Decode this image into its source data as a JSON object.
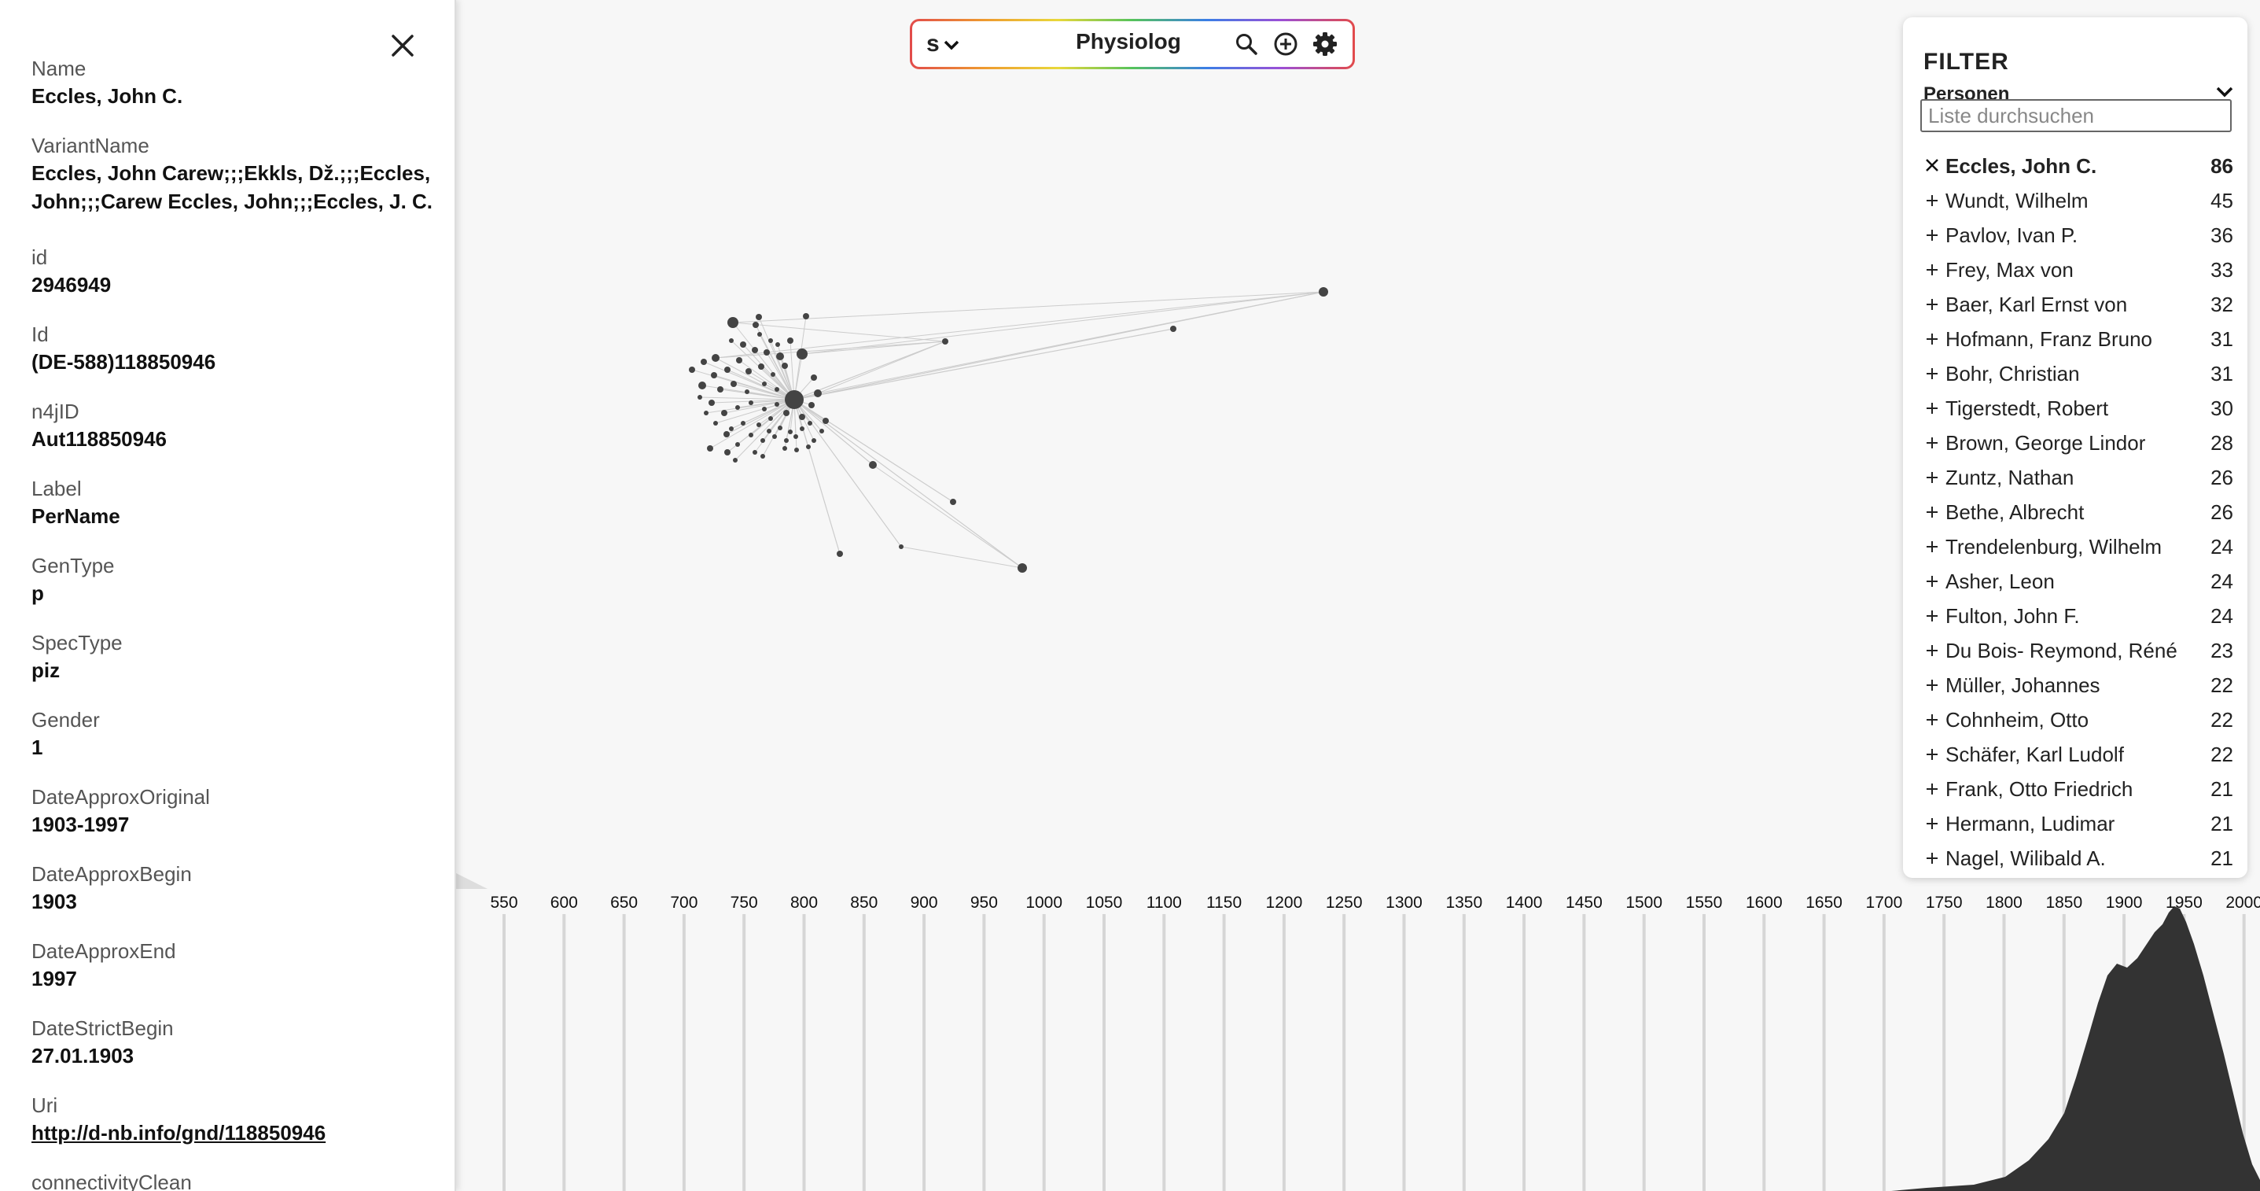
{
  "detail_panel": {
    "fields": [
      {
        "label": "Name",
        "value": "Eccles, John C."
      },
      {
        "label": "VariantName",
        "value": "Eccles, John Carew;;;Ekkls, Dž.;;;Eccles, John;;;Carew Eccles, John;;;Eccles, J. C."
      },
      {
        "label": "id",
        "value": "2946949"
      },
      {
        "label": "Id",
        "value": "(DE-588)118850946"
      },
      {
        "label": "n4jID",
        "value": "Aut118850946"
      },
      {
        "label": "Label",
        "value": "PerName"
      },
      {
        "label": "GenType",
        "value": "p"
      },
      {
        "label": "SpecType",
        "value": "piz"
      },
      {
        "label": "Gender",
        "value": "1"
      },
      {
        "label": "DateApproxOriginal",
        "value": "1903-1997"
      },
      {
        "label": "DateApproxBegin",
        "value": "1903"
      },
      {
        "label": "DateApproxEnd",
        "value": "1997"
      },
      {
        "label": "DateStrictBegin",
        "value": "27.01.1903"
      },
      {
        "label": "Uri",
        "value": "http://d-nb.info/gnd/118850946"
      },
      {
        "label": "connectivityClean",
        "value": ""
      }
    ]
  },
  "search": {
    "mode": "s",
    "query": "Physiolog"
  },
  "filter": {
    "title": "FILTER",
    "category": "Personen",
    "search_placeholder": "Liste durchsuchen",
    "items": [
      {
        "name": "Eccles, John C.",
        "count": "86",
        "active": true
      },
      {
        "name": "Wundt, Wilhelm",
        "count": "45",
        "active": false
      },
      {
        "name": "Pavlov, Ivan P.",
        "count": "36",
        "active": false
      },
      {
        "name": "Frey, Max von",
        "count": "33",
        "active": false
      },
      {
        "name": "Baer, Karl Ernst von",
        "count": "32",
        "active": false
      },
      {
        "name": "Hofmann, Franz Bruno",
        "count": "31",
        "active": false
      },
      {
        "name": "Bohr, Christian",
        "count": "31",
        "active": false
      },
      {
        "name": "Tigerstedt, Robert",
        "count": "30",
        "active": false
      },
      {
        "name": "Brown, George Lindor",
        "count": "28",
        "active": false
      },
      {
        "name": "Zuntz, Nathan",
        "count": "26",
        "active": false
      },
      {
        "name": "Bethe, Albrecht",
        "count": "26",
        "active": false
      },
      {
        "name": "Trendelenburg, Wilhelm",
        "count": "24",
        "active": false
      },
      {
        "name": "Asher, Leon",
        "count": "24",
        "active": false
      },
      {
        "name": "Fulton, John F.",
        "count": "24",
        "active": false
      },
      {
        "name": "Du Bois- Reymond, Réné",
        "count": "23",
        "active": false
      },
      {
        "name": "Müller, Johannes",
        "count": "22",
        "active": false
      },
      {
        "name": "Cohnheim, Otto",
        "count": "22",
        "active": false
      },
      {
        "name": "Schäfer, Karl Ludolf",
        "count": "22",
        "active": false
      },
      {
        "name": "Frank, Otto Friedrich",
        "count": "21",
        "active": false
      },
      {
        "name": "Hermann, Ludimar",
        "count": "21",
        "active": false
      },
      {
        "name": "Nagel, Wilibald A.",
        "count": "21",
        "active": false
      }
    ]
  },
  "timeline": {
    "ticks": [
      "550",
      "600",
      "650",
      "700",
      "750",
      "800",
      "850",
      "900",
      "950",
      "1000",
      "1050",
      "1100",
      "1150",
      "1200",
      "1250",
      "1300",
      "1350",
      "1400",
      "1450",
      "1500",
      "1550",
      "1600",
      "1650",
      "1700",
      "1750",
      "1800",
      "1850",
      "1900",
      "1950",
      "2000"
    ]
  },
  "colors": {
    "node": "#444444",
    "edge": "#cccccc",
    "histogram": "#333333"
  },
  "icons": {
    "close": "close-icon",
    "search": "search-icon",
    "add": "plus-circle-icon",
    "settings": "gear-icon",
    "dropdown": "chevron-down-icon",
    "active_item": "x-icon",
    "inactive_item": "plus-icon"
  }
}
